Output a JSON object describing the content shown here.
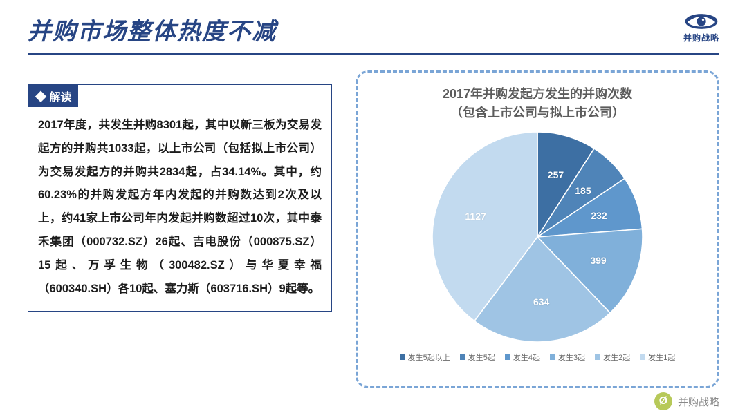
{
  "header": {
    "title": "并购市场整体热度不减",
    "logo_text": "并购战略",
    "rule_color": "#274584"
  },
  "interpretation": {
    "badge": "◆ 解读",
    "body": "2017年度，共发生并购8301起，其中以新三板为交易发起方的并购共1033起，以上市公司（包括拟上市公司）为交易发起方的并购共2834起，占34.14%。其中，约60.23%的并购发起方年内发起的并购数达到2次及以上，约41家上市公司年内发起并购数超过10次，其中泰禾集团（000732.SZ）26起、吉电股份（000875.SZ）15起、万孚生物（300482.SZ）与华夏幸福（600340.SH）各10起、塞力斯（603716.SH）9起等。",
    "border_color": "#274584",
    "badge_bg": "#274584",
    "badge_fg": "#ffffff",
    "body_fontsize": 16.5
  },
  "chart": {
    "type": "pie",
    "title_line1": "2017年并购发起方发生的并购次数",
    "title_line2": "（包含上市公司与拟上市公司）",
    "title_fontsize": 18,
    "title_color": "#5c5c5c",
    "frame_border_color": "#7aa5d6",
    "frame_border_radius": 18,
    "background_color": "#ffffff",
    "start_angle_deg": -90,
    "direction": "clockwise",
    "slices": [
      {
        "label": "发生5起以上",
        "value": 257,
        "color": "#3d6fa3"
      },
      {
        "label": "发生5起",
        "value": 185,
        "color": "#4f84b8"
      },
      {
        "label": "发生4起",
        "value": 232,
        "color": "#5f97cc"
      },
      {
        "label": "发生3起",
        "value": 399,
        "color": "#80b0da"
      },
      {
        "label": "发生2起",
        "value": 634,
        "color": "#9fc4e4"
      },
      {
        "label": "发生1起",
        "value": 1127,
        "color": "#c2daef"
      }
    ],
    "label_color": "#ffffff",
    "label_fontsize": 14,
    "legend_fontsize": 11,
    "legend_color": "#6a6a6a"
  },
  "watermark": {
    "text": "并购战略",
    "icon_bg": "#b7c959",
    "icon_glyph": "Ø"
  }
}
